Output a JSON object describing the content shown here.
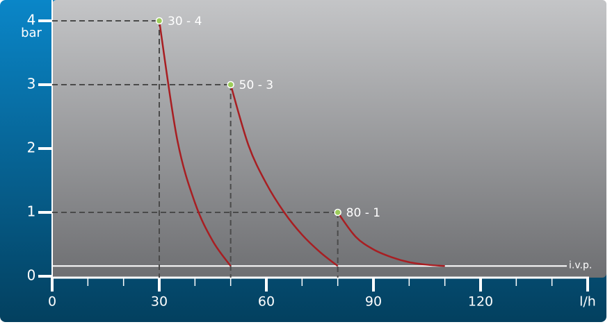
{
  "chart_data": {
    "type": "line",
    "y_label": "bar",
    "xlim": [
      0,
      150
    ],
    "ylim": [
      0,
      4
    ],
    "xticks": [
      0,
      30,
      60,
      90,
      120,
      {
        "value": 150,
        "label": "l/h"
      }
    ],
    "xminor": [
      10,
      20,
      40,
      50,
      70,
      80,
      100,
      110,
      130,
      140
    ],
    "yticks": [
      0,
      1,
      2,
      3,
      4
    ],
    "series": [
      {
        "color": "#a81e22",
        "x": [
          30,
          35,
          40,
          45,
          50
        ],
        "values": [
          4,
          2.15,
          1.15,
          0.55,
          0.16
        ]
      },
      {
        "color": "#a81e22",
        "x": [
          50,
          55,
          60,
          65,
          70,
          75,
          80
        ],
        "values": [
          3,
          2.05,
          1.45,
          1.0,
          0.65,
          0.38,
          0.16
        ]
      },
      {
        "color": "#a81e22",
        "x": [
          80,
          85,
          90,
          95,
          100,
          105,
          110
        ],
        "values": [
          1,
          0.62,
          0.42,
          0.3,
          0.22,
          0.18,
          0.16
        ]
      }
    ],
    "points": [
      {
        "x": 30,
        "y": 4,
        "label": "30 - 4"
      },
      {
        "x": 50,
        "y": 3,
        "label": "50 - 3"
      },
      {
        "x": 80,
        "y": 1,
        "label": "80 - 1"
      }
    ],
    "reference_line": {
      "value": 0.16,
      "label": "i.v.p."
    }
  }
}
